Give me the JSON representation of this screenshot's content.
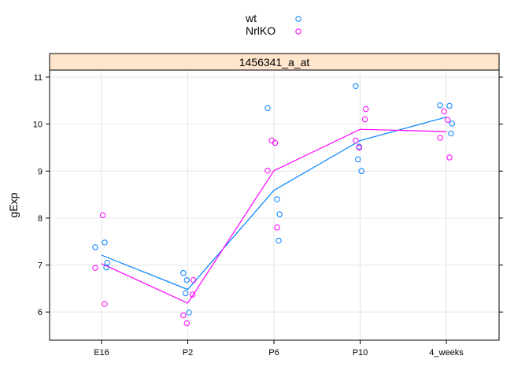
{
  "chart_data": {
    "type": "scatter",
    "title": "",
    "panel_title": "1456341_a_at",
    "xlabel": "",
    "ylabel": "gExp",
    "categories": [
      "E16",
      "P2",
      "P6",
      "P10",
      "4_weeks"
    ],
    "ylim": [
      5.4,
      11.15
    ],
    "yticks": [
      6,
      7,
      8,
      9,
      10,
      11
    ],
    "grid": true,
    "legend_position": "top-center",
    "series": [
      {
        "name": "wt",
        "color": "#0080ff",
        "points": [
          {
            "x": "E16",
            "y": 7.38
          },
          {
            "x": "E16",
            "y": 7.48
          },
          {
            "x": "E16",
            "y": 7.05
          },
          {
            "x": "E16",
            "y": 6.95
          },
          {
            "x": "P2",
            "y": 6.83
          },
          {
            "x": "P2",
            "y": 6.68
          },
          {
            "x": "P2",
            "y": 6.4
          },
          {
            "x": "P2",
            "y": 5.99
          },
          {
            "x": "P6",
            "y": 10.34
          },
          {
            "x": "P6",
            "y": 8.4
          },
          {
            "x": "P6",
            "y": 8.08
          },
          {
            "x": "P6",
            "y": 7.52
          },
          {
            "x": "P10",
            "y": 10.81
          },
          {
            "x": "P10",
            "y": 9.52
          },
          {
            "x": "P10",
            "y": 9.25
          },
          {
            "x": "P10",
            "y": 9.0
          },
          {
            "x": "4_weeks",
            "y": 10.4
          },
          {
            "x": "4_weeks",
            "y": 10.39
          },
          {
            "x": "4_weeks",
            "y": 10.01
          },
          {
            "x": "4_weeks",
            "y": 9.8
          }
        ],
        "line": [
          7.21,
          6.48,
          8.59,
          9.65,
          10.15
        ]
      },
      {
        "name": "NrlKO",
        "color": "#ff00ff",
        "points": [
          {
            "x": "E16",
            "y": 8.06
          },
          {
            "x": "E16",
            "y": 6.94
          },
          {
            "x": "E16",
            "y": 6.17
          },
          {
            "x": "P2",
            "y": 6.68
          },
          {
            "x": "P2",
            "y": 6.37
          },
          {
            "x": "P2",
            "y": 5.93
          },
          {
            "x": "P2",
            "y": 5.76
          },
          {
            "x": "P6",
            "y": 9.65
          },
          {
            "x": "P6",
            "y": 9.6
          },
          {
            "x": "P6",
            "y": 9.01
          },
          {
            "x": "P6",
            "y": 7.8
          },
          {
            "x": "P10",
            "y": 10.32
          },
          {
            "x": "P10",
            "y": 10.1
          },
          {
            "x": "P10",
            "y": 9.65
          },
          {
            "x": "P10",
            "y": 9.5
          },
          {
            "x": "4_weeks",
            "y": 10.27
          },
          {
            "x": "4_weeks",
            "y": 10.09
          },
          {
            "x": "4_weeks",
            "y": 9.71
          },
          {
            "x": "4_weeks",
            "y": 9.29
          }
        ],
        "line": [
          7.03,
          6.19,
          9.01,
          9.89,
          9.84
        ]
      }
    ]
  }
}
